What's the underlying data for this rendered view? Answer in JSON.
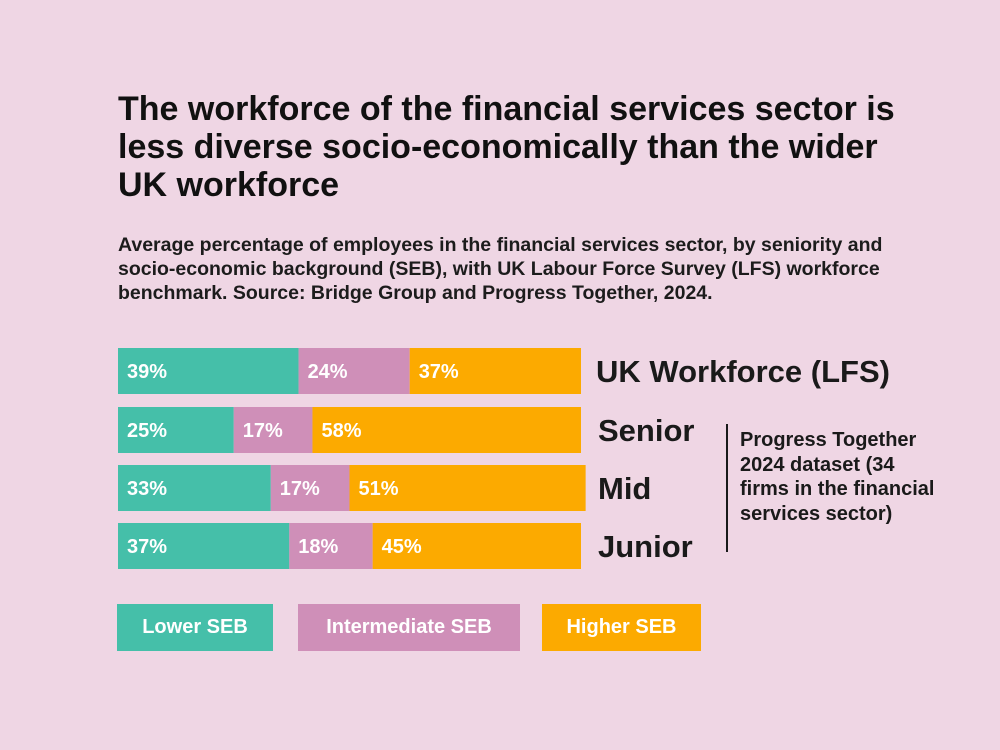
{
  "title": "The workforce of the financial services sector is less diverse socio-economically than the wider UK workforce",
  "subtitle": "Average percentage of employees in the financial services sector, by seniority and socio-economic background (SEB), with UK Labour Force Survey (LFS) workforce benchmark. Source: Bridge Group and Progress Together, 2024.",
  "bracket_note": "Progress Together 2024 dataset (34 firms in the financial services sector)",
  "colors": {
    "background": "#efd6e4",
    "lower": "#45bfa9",
    "intermediate": "#cf8fb8",
    "higher": "#fcaa00",
    "text": "#1a1a1a"
  },
  "legend": [
    {
      "label": "Lower SEB",
      "color": "#45bfa9"
    },
    {
      "label": "Intermediate SEB",
      "color": "#cf8fb8"
    },
    {
      "label": "Higher SEB",
      "color": "#fcaa00"
    }
  ],
  "chart_data": {
    "type": "bar",
    "orientation": "horizontal",
    "stacked": true,
    "normalized_percent": true,
    "title": "The workforce of the financial services sector is less diverse socio-economically than the wider UK workforce",
    "categories": [
      "UK Workforce (LFS)",
      "Senior",
      "Mid",
      "Junior"
    ],
    "series": [
      {
        "name": "Lower SEB",
        "color": "#45bfa9",
        "values": [
          39,
          25,
          33,
          37
        ],
        "labels": [
          "39%",
          "25%",
          "33%",
          "37%"
        ]
      },
      {
        "name": "Intermediate SEB",
        "color": "#cf8fb8",
        "values": [
          24,
          17,
          17,
          18
        ],
        "labels": [
          "24%",
          "17%",
          "17%",
          "18%"
        ]
      },
      {
        "name": "Higher SEB",
        "color": "#fcaa00",
        "values": [
          37,
          58,
          51,
          45
        ],
        "labels": [
          "37%",
          "58%",
          "51%",
          "45%"
        ]
      }
    ],
    "xlim": [
      0,
      100
    ],
    "grid": false,
    "legend_position": "bottom"
  }
}
